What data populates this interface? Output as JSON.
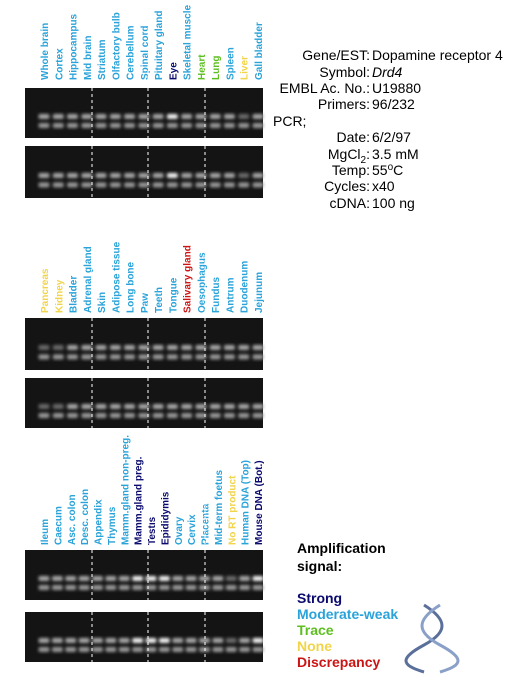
{
  "panels": [
    {
      "lanes": [
        {
          "label": "Whole brain",
          "color": "#29a3d9"
        },
        {
          "label": "Cortex",
          "color": "#29a3d9"
        },
        {
          "label": "Hippocampus",
          "color": "#29a3d9"
        },
        {
          "label": "Mid brain",
          "color": "#29a3d9"
        },
        {
          "label": "Striatum",
          "color": "#29a3d9"
        },
        {
          "label": "Olfactory bulb",
          "color": "#29a3d9"
        },
        {
          "label": "Cerebellum",
          "color": "#29a3d9"
        },
        {
          "label": "Spinal cord",
          "color": "#29a3d9"
        },
        {
          "label": "Pituitary gland",
          "color": "#29a3d9"
        },
        {
          "label": "Eye",
          "color": "#0a0a6e"
        },
        {
          "label": "Skeletal muscle",
          "color": "#29a3d9"
        },
        {
          "label": "Heart",
          "color": "#5cbf1f"
        },
        {
          "label": "Lung",
          "color": "#5cbf1f"
        },
        {
          "label": "Spleen",
          "color": "#29a3d9"
        },
        {
          "label": "Liver",
          "color": "#f2d44a"
        },
        {
          "label": "Gall bladder",
          "color": "#29a3d9"
        }
      ]
    },
    {
      "lanes": [
        {
          "label": "Pancreas",
          "color": "#f2d44a"
        },
        {
          "label": "Kidney",
          "color": "#f2d44a"
        },
        {
          "label": "Bladder",
          "color": "#29a3d9"
        },
        {
          "label": "Adrenal gland",
          "color": "#29a3d9"
        },
        {
          "label": "Skin",
          "color": "#29a3d9"
        },
        {
          "label": "Adipose tissue",
          "color": "#29a3d9"
        },
        {
          "label": "Long bone",
          "color": "#29a3d9"
        },
        {
          "label": "Paw",
          "color": "#29a3d9"
        },
        {
          "label": "Teeth",
          "color": "#29a3d9"
        },
        {
          "label": "Tongue",
          "color": "#29a3d9"
        },
        {
          "label": "Salivary gland",
          "color": "#cc1414"
        },
        {
          "label": "Oesophagus",
          "color": "#29a3d9"
        },
        {
          "label": "Fundus",
          "color": "#29a3d9"
        },
        {
          "label": "Antrum",
          "color": "#29a3d9"
        },
        {
          "label": "Duodenum",
          "color": "#29a3d9"
        },
        {
          "label": "Jejunum",
          "color": "#29a3d9"
        }
      ]
    },
    {
      "lanes": [
        {
          "label": "Ileum",
          "color": "#29a3d9"
        },
        {
          "label": "Caecum",
          "color": "#29a3d9"
        },
        {
          "label": "Asc. colon",
          "color": "#29a3d9"
        },
        {
          "label": "Desc. colon",
          "color": "#29a3d9"
        },
        {
          "label": "Appendix",
          "color": "#29a3d9"
        },
        {
          "label": "Thymus",
          "color": "#29a3d9"
        },
        {
          "label": "Mamm.gland non-preg.",
          "color": "#29a3d9"
        },
        {
          "label": "Mamm.gland preg.",
          "color": "#0a0a6e"
        },
        {
          "label": "Testis",
          "color": "#0a0a6e"
        },
        {
          "label": "Epididymis",
          "color": "#0a0a6e"
        },
        {
          "label": "Ovary",
          "color": "#29a3d9"
        },
        {
          "label": "Cervix",
          "color": "#29a3d9"
        },
        {
          "label": "Placenta",
          "color": "#29a3d9"
        },
        {
          "label": "Mid-term foetus",
          "color": "#29a3d9"
        },
        {
          "label": "No RT product",
          "color": "#f2d44a"
        },
        {
          "label": "Human DNA (Top)",
          "color": "#29a3d9"
        },
        {
          "label": "Mouse DNA (Bot.)",
          "color": "#0a0a6e"
        }
      ]
    }
  ],
  "info": {
    "gene": {
      "label": "Gene/EST:",
      "value": "Dopamine receptor 4"
    },
    "symbol": {
      "label": "Symbol:",
      "value": "Drd4"
    },
    "embl": {
      "label": "EMBL Ac. No.:",
      "value": "U19880"
    },
    "primers": {
      "label": "Primers:",
      "value": "96/232"
    },
    "pcr": "PCR;",
    "date": {
      "label": "Date:",
      "value": "6/2/97"
    },
    "mgcl": {
      "label": "MgCl",
      "label_sub": "2",
      "label_end": ":",
      "value": "3.5 mM"
    },
    "temp": {
      "label": "Temp:",
      "value": "55",
      "value_sup": "o",
      "value_end": "C"
    },
    "cycles": {
      "label": "Cycles:",
      "value": "x40"
    },
    "cdna": {
      "label": "cDNA:",
      "value": "100 ng"
    }
  },
  "legend": {
    "title": [
      "Amplification",
      "signal:"
    ],
    "items": [
      {
        "label": "Strong",
        "color": "#0a0a6e"
      },
      {
        "label": "Moderate-weak",
        "color": "#29a3d9"
      },
      {
        "label": "Trace",
        "color": "#5cbf1f"
      },
      {
        "label": "None",
        "color": "#f2d44a"
      },
      {
        "label": "Discrepancy",
        "color": "#cc1414"
      }
    ]
  }
}
